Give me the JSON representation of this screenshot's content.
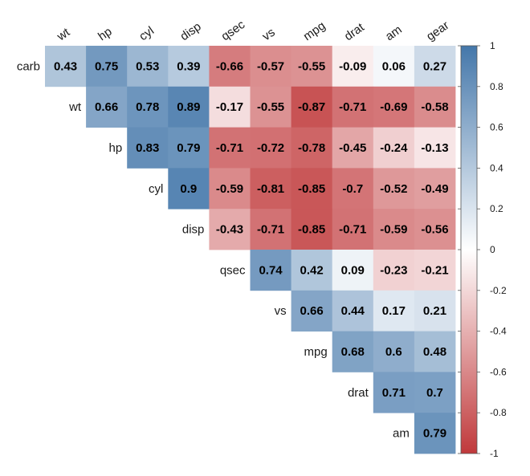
{
  "chart_data": {
    "type": "heatmap",
    "title": "",
    "columns": [
      "wt",
      "hp",
      "cyl",
      "disp",
      "qsec",
      "vs",
      "mpg",
      "drat",
      "am",
      "gear"
    ],
    "rows": [
      "carb",
      "wt",
      "hp",
      "cyl",
      "disp",
      "qsec",
      "vs",
      "mpg",
      "drat",
      "am"
    ],
    "values": [
      [
        0.43,
        0.75,
        0.53,
        0.39,
        -0.66,
        -0.57,
        -0.55,
        -0.09,
        0.06,
        0.27
      ],
      [
        null,
        0.66,
        0.78,
        0.89,
        -0.17,
        -0.55,
        -0.87,
        -0.71,
        -0.69,
        -0.58
      ],
      [
        null,
        null,
        0.83,
        0.79,
        -0.71,
        -0.72,
        -0.78,
        -0.45,
        -0.24,
        -0.13
      ],
      [
        null,
        null,
        null,
        0.9,
        -0.59,
        -0.81,
        -0.85,
        -0.7,
        -0.52,
        -0.49
      ],
      [
        null,
        null,
        null,
        null,
        -0.43,
        -0.71,
        -0.85,
        -0.71,
        -0.59,
        -0.56
      ],
      [
        null,
        null,
        null,
        null,
        null,
        0.74,
        0.42,
        0.09,
        -0.23,
        -0.21
      ],
      [
        null,
        null,
        null,
        null,
        null,
        null,
        0.66,
        0.44,
        0.17,
        0.21
      ],
      [
        null,
        null,
        null,
        null,
        null,
        null,
        null,
        0.68,
        0.6,
        0.48
      ],
      [
        null,
        null,
        null,
        null,
        null,
        null,
        null,
        null,
        0.71,
        0.7
      ],
      [
        null,
        null,
        null,
        null,
        null,
        null,
        null,
        null,
        null,
        0.79
      ]
    ],
    "labels": [
      [
        "0.43",
        "0.75",
        "0.53",
        "0.39",
        "-0.66",
        "-0.57",
        "-0.55",
        "-0.09",
        "0.06",
        "0.27"
      ],
      [
        null,
        "0.66",
        "0.78",
        "0.89",
        "-0.17",
        "-0.55",
        "-0.87",
        "-0.71",
        "-0.69",
        "-0.58"
      ],
      [
        null,
        null,
        "0.83",
        "0.79",
        "-0.71",
        "-0.72",
        "-0.78",
        "-0.45",
        "-0.24",
        "-0.13"
      ],
      [
        null,
        null,
        null,
        "0.9",
        "-0.59",
        "-0.81",
        "-0.85",
        "-0.7",
        "-0.52",
        "-0.49"
      ],
      [
        null,
        null,
        null,
        null,
        "-0.43",
        "-0.71",
        "-0.85",
        "-0.71",
        "-0.59",
        "-0.56"
      ],
      [
        null,
        null,
        null,
        null,
        null,
        "0.74",
        "0.42",
        "0.09",
        "-0.23",
        "-0.21"
      ],
      [
        null,
        null,
        null,
        null,
        null,
        null,
        "0.66",
        "0.44",
        "0.17",
        "0.21"
      ],
      [
        null,
        null,
        null,
        null,
        null,
        null,
        null,
        "0.68",
        "0.6",
        "0.48"
      ],
      [
        null,
        null,
        null,
        null,
        null,
        null,
        null,
        null,
        "0.71",
        "0.7"
      ],
      [
        null,
        null,
        null,
        null,
        null,
        null,
        null,
        null,
        null,
        "0.79"
      ]
    ],
    "color_scale": {
      "min": -1,
      "max": 1,
      "low_color": "#c0393b",
      "mid_color": "#ffffff",
      "high_color": "#4477aa"
    },
    "legend": {
      "placement": "right",
      "ticks": [
        1,
        0.8,
        0.6,
        0.4,
        0.2,
        0,
        -0.2,
        -0.4,
        -0.6,
        -0.8,
        -1
      ],
      "tick_labels": [
        "1",
        "0.8",
        "0.6",
        "0.4",
        "0.2",
        "0",
        "-0.2",
        "-0.4",
        "-0.6",
        "-0.8",
        "-1"
      ]
    }
  }
}
